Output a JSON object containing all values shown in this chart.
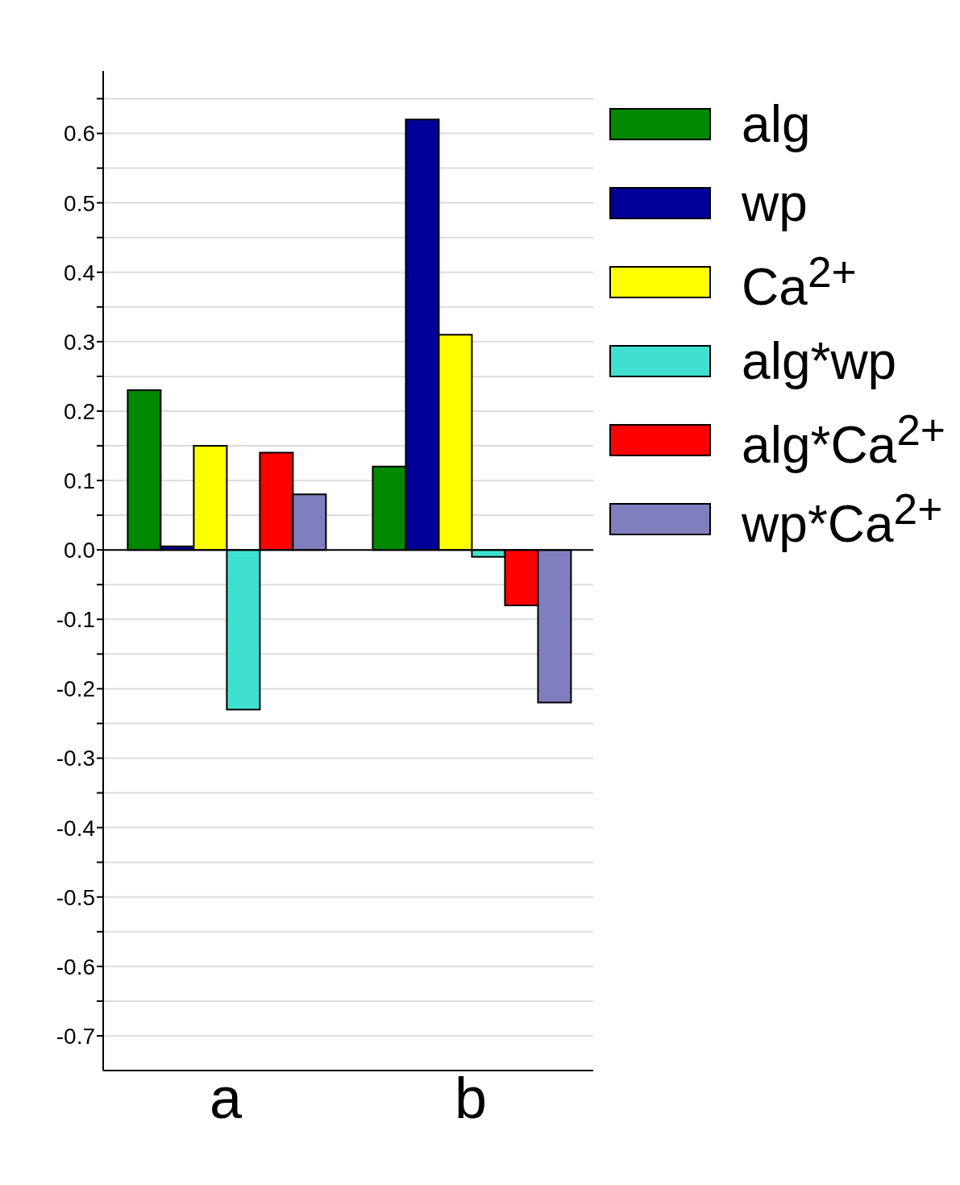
{
  "chart_data": {
    "type": "bar",
    "categories": [
      "a",
      "b"
    ],
    "series": [
      {
        "name": "alg",
        "color": "#008800",
        "values": [
          0.23,
          0.12
        ]
      },
      {
        "name": "wp",
        "color": "#000099",
        "values": [
          0.005,
          0.62
        ]
      },
      {
        "name": "Ca$^{2+}$",
        "color": "#ffff00",
        "values": [
          0.15,
          0.31
        ]
      },
      {
        "name": "alg*wp",
        "color": "#40e0d0",
        "values": [
          -0.23,
          -0.01
        ]
      },
      {
        "name": "alg*Ca$^{2+}$",
        "color": "#ff0000",
        "values": [
          0.14,
          -0.08
        ]
      },
      {
        "name": "wp*Ca$^{2+}$",
        "color": "#7f7fbf",
        "values": [
          0.08,
          -0.22
        ]
      }
    ],
    "ylim": [
      -0.75,
      0.69
    ],
    "yticks": [
      -0.7,
      {
        "value": -0.65,
        "label": null
      },
      {
        "value": -0.6,
        "label": "-0.6"
      },
      {
        "value": -0.55,
        "label": null
      },
      {
        "value": -0.5,
        "label": "-0.5"
      },
      {
        "value": -0.45,
        "label": null
      },
      {
        "value": -0.4,
        "label": "-0.4"
      },
      {
        "value": -0.35,
        "label": null
      },
      {
        "value": -0.3,
        "label": "-0.3"
      },
      {
        "value": -0.25,
        "label": null
      },
      {
        "value": -0.2,
        "label": "-0.2"
      },
      {
        "value": -0.15,
        "label": null
      },
      {
        "value": -0.1,
        "label": "-0.1"
      },
      {
        "value": -0.05,
        "label": null
      },
      {
        "value": 0,
        "label": "0.0"
      },
      {
        "value": 0.05,
        "label": null
      },
      {
        "value": 0.1,
        "label": "0.1"
      },
      {
        "value": 0.15,
        "label": null
      },
      {
        "value": 0.2,
        "label": "0.2"
      },
      {
        "value": 0.25,
        "label": null
      },
      {
        "value": 0.3,
        "label": "0.3"
      },
      {
        "value": 0.35,
        "label": null
      },
      {
        "value": 0.4,
        "label": "0.4"
      },
      {
        "value": 0.45,
        "label": null
      },
      {
        "value": 0.5,
        "label": "0.5"
      },
      {
        "value": 0.55,
        "label": null
      },
      {
        "value": 0.6,
        "label": "0.6"
      },
      {
        "value": 0.65,
        "label": null
      }
    ],
    "ref_lines": [
      {
        "axis": "y",
        "value": 0,
        "color": "#000000"
      }
    ],
    "grid": "y",
    "legend": "top right"
  }
}
